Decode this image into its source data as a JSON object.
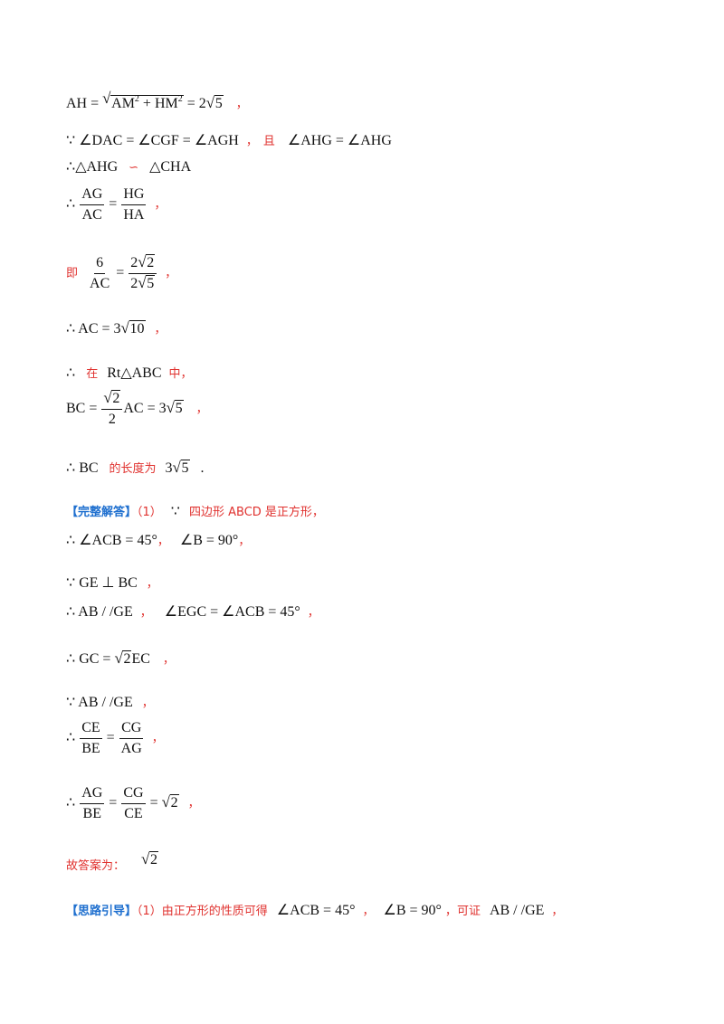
{
  "lines": {
    "l1": {
      "lhs": "AH = ",
      "rad1": "AM",
      "sq": "2",
      "plus": " + HM",
      "eq2": " = 2",
      "rad2": "5",
      "punct": "，"
    },
    "l2": {
      "because": "∵ ",
      "expr": "∠DAC = ∠CGF = ∠AGH",
      "comma": "，",
      "and": "且",
      "expr2": "∠AHG = ∠AHG"
    },
    "l3": {
      "therefore": "∴",
      "tri1": "△AHG",
      "sim": "∽",
      "tri2": "△CHA"
    },
    "l4": {
      "therefore": "∴ ",
      "n1": "AG",
      "d1": "AC",
      "eq": " = ",
      "n2": "HG",
      "d2": "HA",
      "punct": "，"
    },
    "l5": {
      "ji": "即",
      "n1": "6",
      "d1": "AC",
      "eq": " = ",
      "n2a": "2",
      "n2r": "2",
      "d2a": "2",
      "d2r": "5",
      "punct": "，"
    },
    "l6": {
      "therefore": "∴ ",
      "expr": "AC = 3",
      "rad": "10",
      "punct": "，"
    },
    "l7": {
      "therefore": "∴",
      "zai": "在",
      "tri": "Rt△ABC",
      "zhong": "中，"
    },
    "l8": {
      "lhs": "BC = ",
      "nrad": "2",
      "den": "2",
      "mid": "AC = 3",
      "rad": "5",
      "punct": "，"
    },
    "l9": {
      "therefore": "∴ ",
      "bc": "BC",
      "text": "的长度为",
      "val": "3",
      "rad": "5",
      "punct": "."
    },
    "l10": {
      "tag": "【完整解答】",
      "part": "（1）",
      "because": "∵",
      "text": "四边形 ABCD 是正方形，"
    },
    "l11": {
      "therefore": "∴ ",
      "e1": "∠ACB = 45°",
      "c1": "，",
      "e2": "∠B = 90°",
      "c2": "，"
    },
    "l12": {
      "because": "∵ ",
      "expr": "GE ⊥ BC",
      "punct": "，"
    },
    "l13": {
      "therefore": "∴ ",
      "e1": "AB / /GE",
      "c1": "，",
      "e2": "∠EGC = ∠ACB = 45°",
      "c2": "，"
    },
    "l14": {
      "therefore": "∴ ",
      "expr": "GC = ",
      "rad": "2",
      "tail": "EC",
      "punct": "，"
    },
    "l15": {
      "because": "∵ ",
      "expr": "AB / /GE",
      "punct": "，"
    },
    "l16": {
      "therefore": "∴ ",
      "n1": "CE",
      "d1": "BE",
      "eq": " = ",
      "n2": "CG",
      "d2": "AG",
      "punct": "，"
    },
    "l17": {
      "therefore": "∴ ",
      "n1": "AG",
      "d1": "BE",
      "eq": " = ",
      "n2": "CG",
      "d2": "CE",
      "eq2": " = ",
      "rad": "2",
      "punct": "，"
    },
    "l18": {
      "text": "故答案为：",
      "rad": "2"
    },
    "l19": {
      "tag": "【思路引导】",
      "text": "（1）由正方形的性质可得",
      "e1": "∠ACB = 45°",
      "c1": "，",
      "e2": "∠B = 90°",
      "c2": "，",
      "text2": "可证",
      "e3": "AB / /GE",
      "c3": "，"
    }
  }
}
